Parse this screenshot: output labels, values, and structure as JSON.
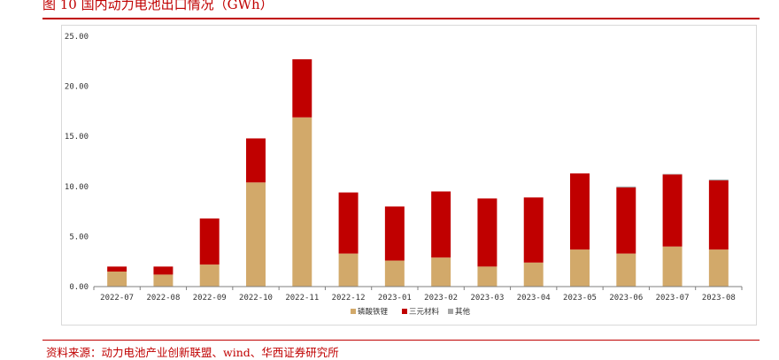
{
  "title": "图 10 国内动力电池出口情况（GWh）",
  "source": "资料来源：动力电池产业创新联盟、wind、华西证券研究所",
  "colors": {
    "lfp": "#d2a96a",
    "ternary": "#c00000",
    "other": "#a6a6a6",
    "accent": "#c00000"
  },
  "chart_data": {
    "type": "bar",
    "stacked": true,
    "title": "",
    "xlabel": "",
    "ylabel": "",
    "ylim": [
      0,
      25
    ],
    "yticks": [
      "0.00",
      "5.00",
      "10.00",
      "15.00",
      "20.00",
      "25.00"
    ],
    "grid": false,
    "legend_position": "bottom",
    "categories": [
      "2022-07",
      "2022-08",
      "2022-09",
      "2022-10",
      "2022-11",
      "2022-12",
      "2023-01",
      "2023-02",
      "2023-03",
      "2023-04",
      "2023-05",
      "2023-06",
      "2023-07",
      "2023-08"
    ],
    "series": [
      {
        "name": "磷酸铁锂",
        "color": "#d2a96a",
        "values": [
          1.5,
          1.2,
          2.2,
          10.4,
          16.9,
          3.3,
          2.6,
          2.9,
          2.0,
          2.4,
          3.7,
          3.3,
          4.0,
          3.7
        ]
      },
      {
        "name": "三元材料",
        "color": "#c00000",
        "values": [
          0.5,
          0.8,
          4.6,
          4.4,
          5.8,
          6.1,
          5.4,
          6.6,
          6.8,
          6.5,
          7.6,
          6.6,
          7.2,
          6.9
        ]
      },
      {
        "name": "其他",
        "color": "#a6a6a6",
        "values": [
          0,
          0,
          0,
          0,
          0,
          0,
          0,
          0,
          0,
          0,
          0,
          0.1,
          0.05,
          0.1
        ]
      }
    ]
  }
}
